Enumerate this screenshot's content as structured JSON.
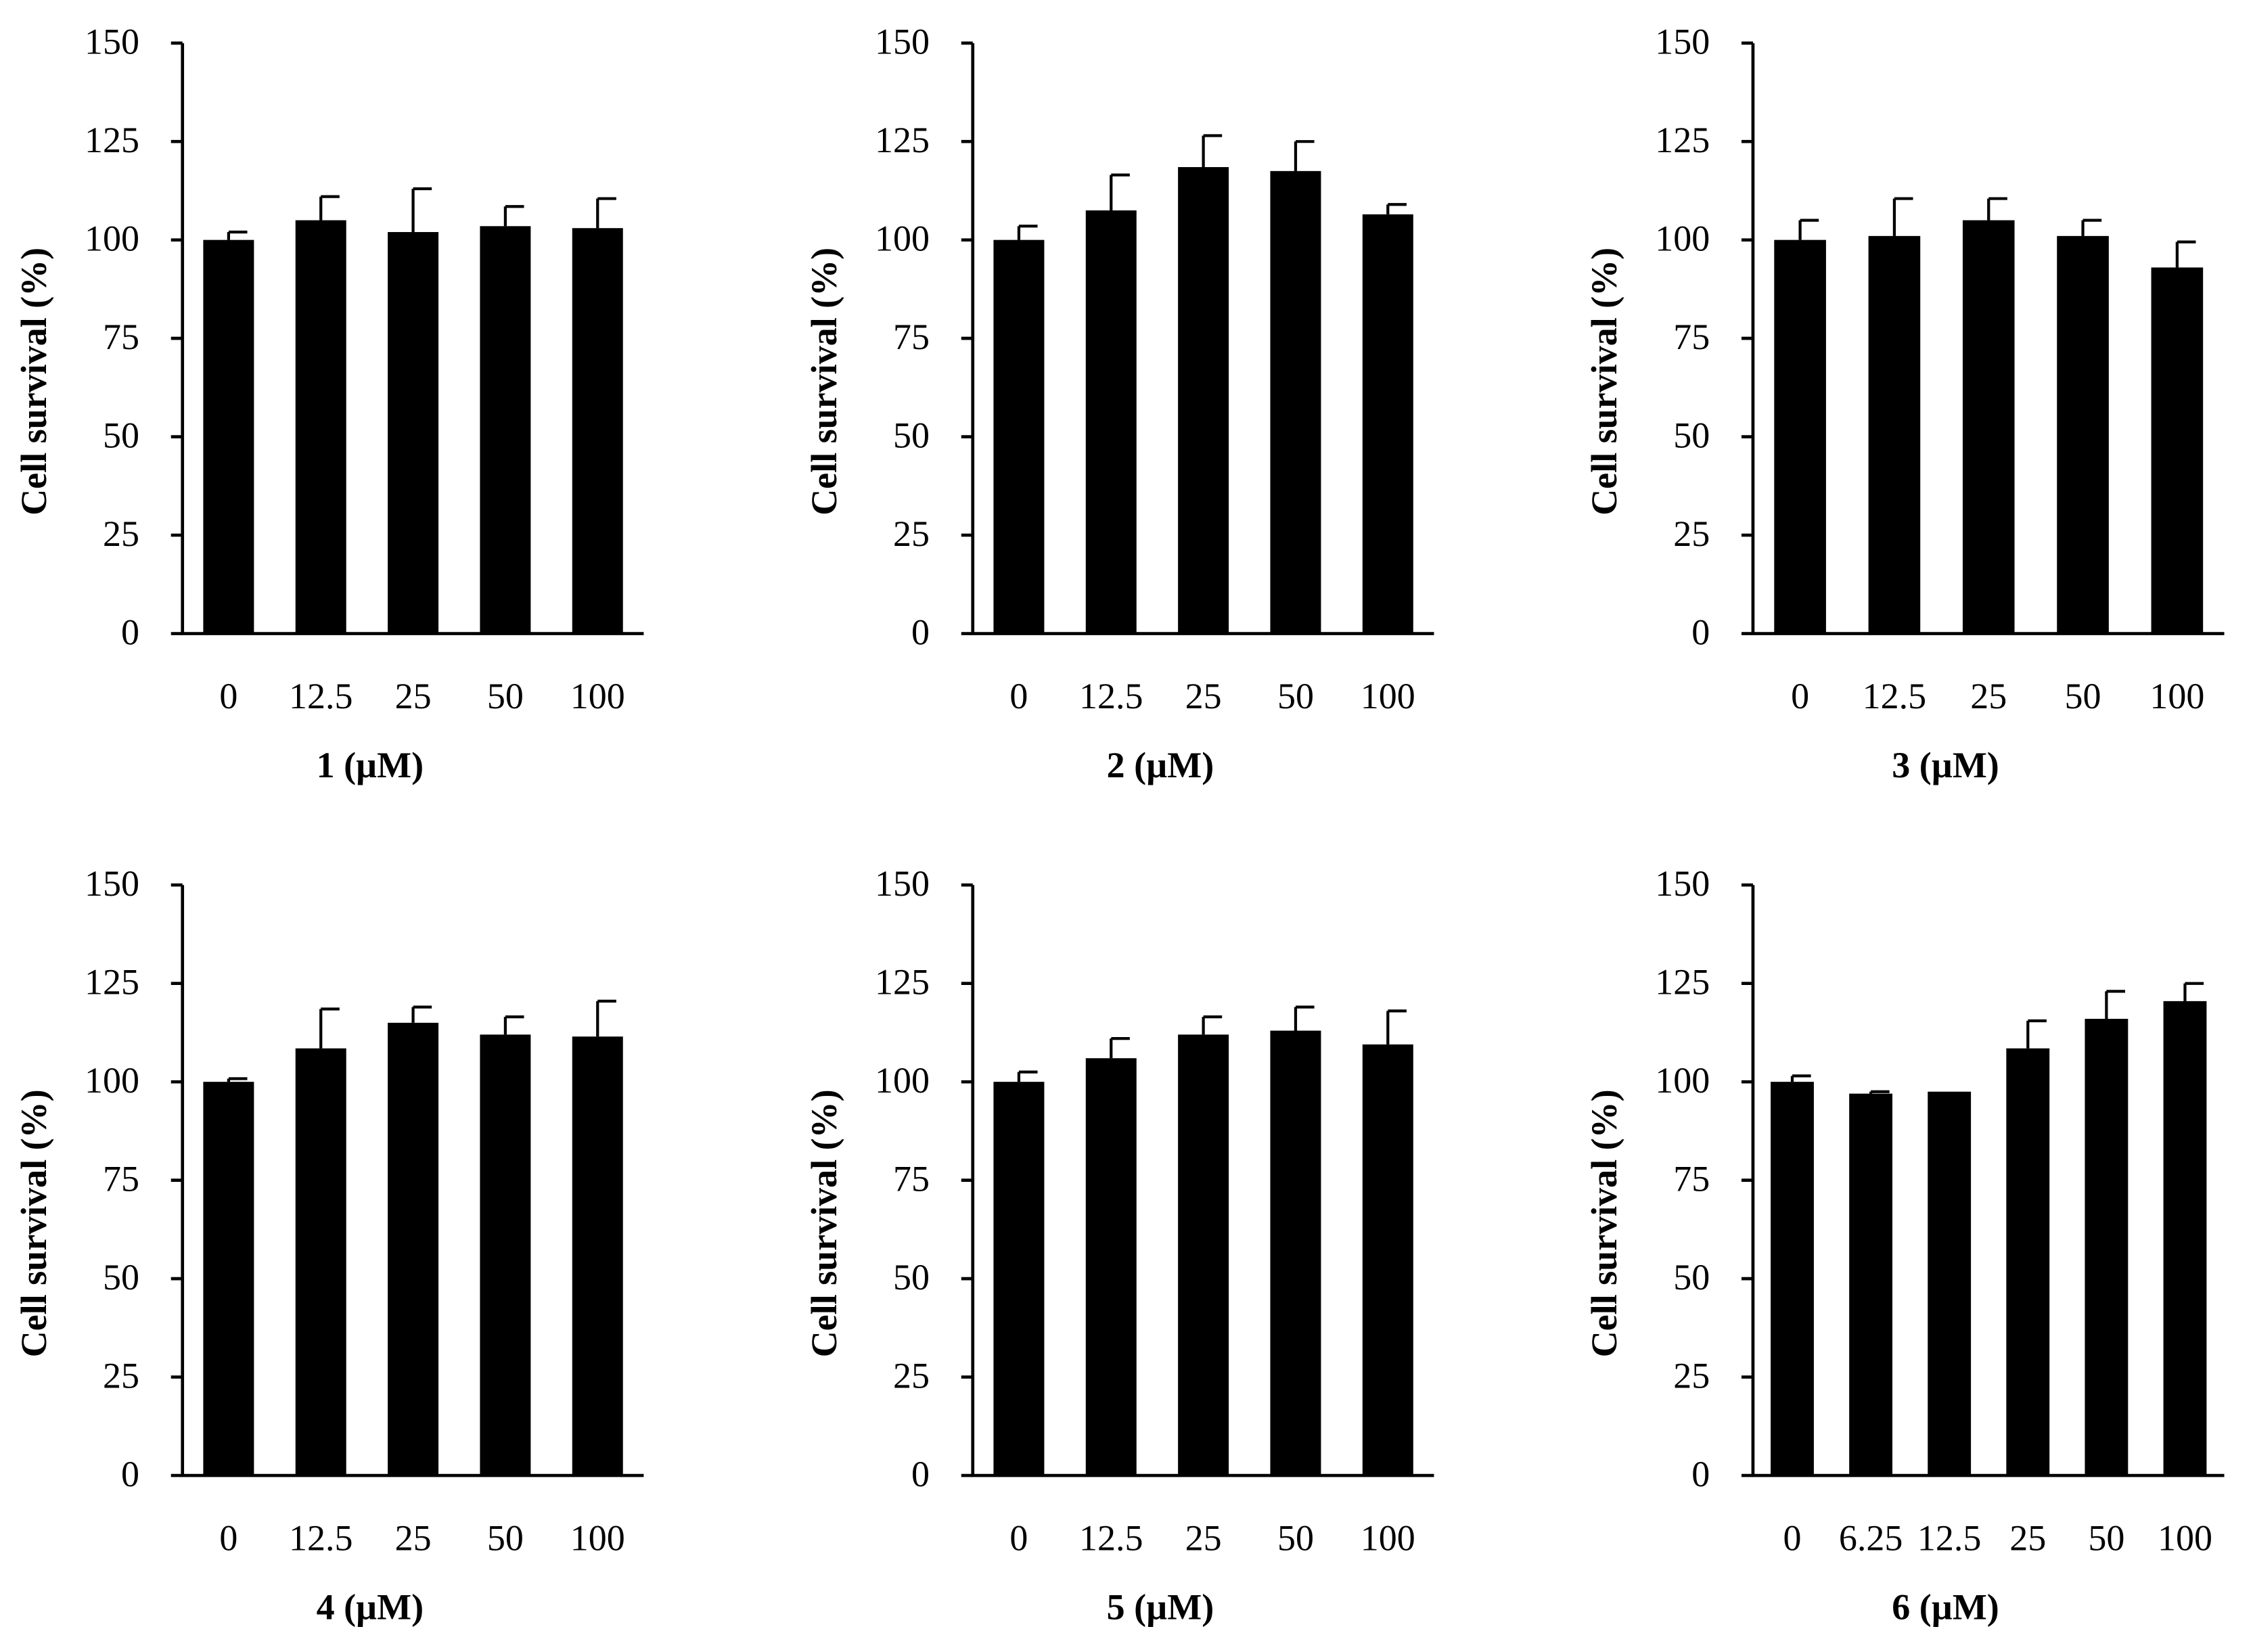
{
  "figure": {
    "background": "#ffffff",
    "bar_color": "#000000"
  },
  "chart_data": [
    {
      "type": "bar",
      "title": "",
      "xlabel": "1 (µM)",
      "ylabel": "Cell survival (%)",
      "ylim": [
        0,
        150
      ],
      "yticks": [
        0,
        25,
        50,
        75,
        100,
        125,
        150
      ],
      "categories": [
        "0",
        "12.5",
        "25",
        "50",
        "100"
      ],
      "values": [
        100,
        105,
        102,
        103.5,
        103
      ],
      "errors": [
        2,
        6,
        11,
        5,
        7.5
      ]
    },
    {
      "type": "bar",
      "title": "",
      "xlabel": "2 (µM)",
      "ylabel": "Cell survival (%)",
      "ylim": [
        0,
        150
      ],
      "yticks": [
        0,
        25,
        50,
        75,
        100,
        125,
        150
      ],
      "categories": [
        "0",
        "12.5",
        "25",
        "50",
        "100"
      ],
      "values": [
        100,
        107.5,
        118.5,
        117.5,
        106.5
      ],
      "errors": [
        3.5,
        9,
        8,
        7.5,
        2.5
      ]
    },
    {
      "type": "bar",
      "title": "",
      "xlabel": "3 (µM)",
      "ylabel": "Cell survival (%)",
      "ylim": [
        0,
        150
      ],
      "yticks": [
        0,
        25,
        50,
        75,
        100,
        125,
        150
      ],
      "categories": [
        "0",
        "12.5",
        "25",
        "50",
        "100"
      ],
      "values": [
        100,
        101,
        105,
        101,
        93
      ],
      "errors": [
        5,
        9.5,
        5.5,
        4,
        6.5
      ]
    },
    {
      "type": "bar",
      "title": "",
      "xlabel": "4 (µM)",
      "ylabel": "Cell survival (%)",
      "ylim": [
        0,
        150
      ],
      "yticks": [
        0,
        25,
        50,
        75,
        100,
        125,
        150
      ],
      "categories": [
        "0",
        "12.5",
        "25",
        "50",
        "100"
      ],
      "values": [
        100,
        108.5,
        115,
        112,
        111.5
      ],
      "errors": [
        0.8,
        10,
        4,
        4.5,
        9
      ]
    },
    {
      "type": "bar",
      "title": "",
      "xlabel": "5 (µM)",
      "ylabel": "Cell survival (%)",
      "ylim": [
        0,
        150
      ],
      "yticks": [
        0,
        25,
        50,
        75,
        100,
        125,
        150
      ],
      "categories": [
        "0",
        "12.5",
        "25",
        "50",
        "100"
      ],
      "values": [
        100,
        106,
        112,
        113,
        109.5
      ],
      "errors": [
        2.5,
        5,
        4.5,
        6,
        8.5
      ]
    },
    {
      "type": "bar",
      "title": "",
      "xlabel": "6 (µM)",
      "ylabel": "Cell survival (%)",
      "ylim": [
        0,
        150
      ],
      "yticks": [
        0,
        25,
        50,
        75,
        100,
        125,
        150
      ],
      "categories": [
        "0",
        "6.25",
        "12.5",
        "25",
        "50",
        "100"
      ],
      "values": [
        100,
        97,
        97.5,
        108.5,
        116,
        120.5
      ],
      "errors": [
        1.5,
        0.5,
        0,
        7,
        7,
        4.5
      ]
    }
  ]
}
